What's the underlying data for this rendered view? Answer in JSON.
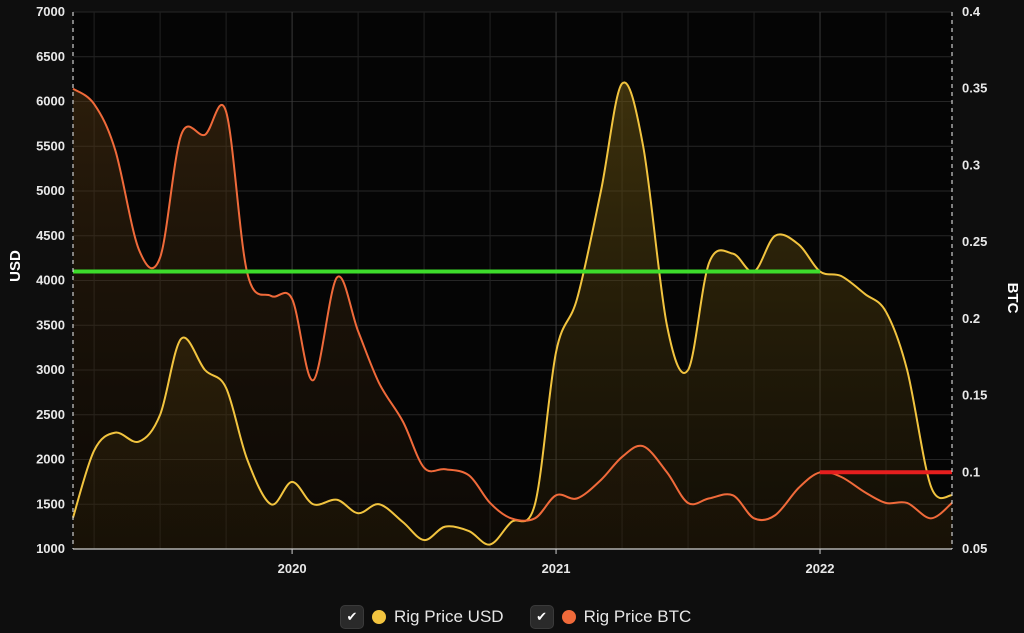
{
  "chart_data": {
    "type": "line",
    "x_unit": "year",
    "xlim": [
      2019.17,
      2022.5
    ],
    "x_ticks": [
      "2020",
      "2021",
      "2022"
    ],
    "y_left": {
      "label": "USD",
      "lim": [
        1000,
        7000
      ],
      "ticks": [
        "1000",
        "1500",
        "2000",
        "2500",
        "3000",
        "3500",
        "4000",
        "4500",
        "5000",
        "5500",
        "6000",
        "6500",
        "7000"
      ]
    },
    "y_right": {
      "label": "BTC",
      "lim": [
        0.05,
        0.4
      ],
      "ticks": [
        "0.05",
        "0.1",
        "0.15",
        "0.2",
        "0.25",
        "0.3",
        "0.35",
        "0.4"
      ]
    },
    "series": [
      {
        "name": "Rig Price USD",
        "axis": "left",
        "color": "#f2c43f",
        "x": [
          2019.17,
          2019.25,
          2019.33,
          2019.42,
          2019.5,
          2019.58,
          2019.67,
          2019.75,
          2019.83,
          2019.92,
          2020.0,
          2020.08,
          2020.17,
          2020.25,
          2020.33,
          2020.42,
          2020.5,
          2020.58,
          2020.67,
          2020.75,
          2020.83,
          2020.92,
          2021.0,
          2021.08,
          2021.17,
          2021.25,
          2021.33,
          2021.42,
          2021.5,
          2021.58,
          2021.67,
          2021.75,
          2021.83,
          2021.92,
          2022.0,
          2022.08,
          2022.17,
          2022.25,
          2022.33,
          2022.42,
          2022.5
        ],
        "y": [
          1350,
          2100,
          2300,
          2200,
          2500,
          3350,
          3000,
          2800,
          2000,
          1500,
          1750,
          1500,
          1550,
          1400,
          1500,
          1300,
          1100,
          1250,
          1200,
          1050,
          1300,
          1500,
          3200,
          3800,
          5000,
          6200,
          5500,
          3500,
          3000,
          4200,
          4300,
          4100,
          4500,
          4400,
          4100,
          4050,
          3850,
          3650,
          3000,
          1700,
          1600
        ]
      },
      {
        "name": "Rig Price BTC",
        "axis": "right",
        "color": "#f06a3a",
        "x": [
          2019.17,
          2019.25,
          2019.33,
          2019.42,
          2019.5,
          2019.58,
          2019.67,
          2019.75,
          2019.83,
          2019.92,
          2020.0,
          2020.08,
          2020.17,
          2020.25,
          2020.33,
          2020.42,
          2020.5,
          2020.58,
          2020.67,
          2020.75,
          2020.83,
          2020.92,
          2021.0,
          2021.08,
          2021.17,
          2021.25,
          2021.33,
          2021.42,
          2021.5,
          2021.58,
          2021.67,
          2021.75,
          2021.83,
          2021.92,
          2022.0,
          2022.08,
          2022.17,
          2022.25,
          2022.33,
          2022.42,
          2022.5
        ],
        "y": [
          0.35,
          0.34,
          0.31,
          0.245,
          0.24,
          0.32,
          0.32,
          0.335,
          0.23,
          0.215,
          0.213,
          0.16,
          0.227,
          0.192,
          0.158,
          0.133,
          0.103,
          0.102,
          0.098,
          0.08,
          0.07,
          0.07,
          0.085,
          0.083,
          0.095,
          0.11,
          0.117,
          0.1,
          0.08,
          0.083,
          0.085,
          0.07,
          0.072,
          0.09,
          0.1,
          0.097,
          0.087,
          0.08,
          0.08,
          0.07,
          0.08
        ]
      }
    ],
    "reference_lines": [
      {
        "axis": "left",
        "value": 4100,
        "x_from": 2019.17,
        "x_to": 2022.0,
        "color": "#3ddc2b"
      },
      {
        "axis": "right",
        "value": 0.1,
        "x_from": 2022.0,
        "x_to": 2022.5,
        "color": "#e61e1e"
      }
    ],
    "grid": true,
    "legend_position": "bottom-center"
  },
  "legend": {
    "check_glyph": "✔",
    "items": [
      {
        "label": "Rig Price USD",
        "color": "#f2c43f"
      },
      {
        "label": "Rig Price BTC",
        "color": "#f06a3a"
      }
    ]
  }
}
